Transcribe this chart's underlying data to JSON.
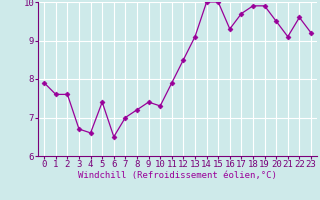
{
  "x": [
    0,
    1,
    2,
    3,
    4,
    5,
    6,
    7,
    8,
    9,
    10,
    11,
    12,
    13,
    14,
    15,
    16,
    17,
    18,
    19,
    20,
    21,
    22,
    23
  ],
  "y": [
    7.9,
    7.6,
    7.6,
    6.7,
    6.6,
    7.4,
    6.5,
    7.0,
    7.2,
    7.4,
    7.3,
    7.9,
    8.5,
    9.1,
    10.0,
    10.0,
    9.3,
    9.7,
    9.9,
    9.9,
    9.5,
    9.1,
    9.6,
    9.2
  ],
  "xlabel": "Windchill (Refroidissement éolien,°C)",
  "ylim": [
    6,
    10
  ],
  "yticks": [
    6,
    7,
    8,
    9,
    10
  ],
  "xticks": [
    0,
    1,
    2,
    3,
    4,
    5,
    6,
    7,
    8,
    9,
    10,
    11,
    12,
    13,
    14,
    15,
    16,
    17,
    18,
    19,
    20,
    21,
    22,
    23
  ],
  "line_color": "#990099",
  "marker": "D",
  "marker_size": 2.5,
  "bg_color": "#ceeaea",
  "grid_color": "#ffffff",
  "tick_label_color": "#990099",
  "xlabel_color": "#990099",
  "xlabel_fontsize": 6.5,
  "tick_fontsize": 6.5,
  "axis_color": "#7a007a"
}
